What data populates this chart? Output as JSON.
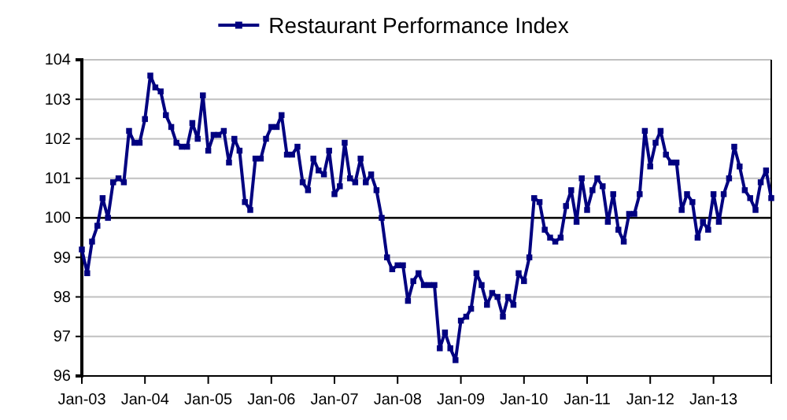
{
  "chart_data": {
    "type": "line",
    "x": [
      "2003-01",
      "2003-02",
      "2003-03",
      "2003-04",
      "2003-05",
      "2003-06",
      "2003-07",
      "2003-08",
      "2003-09",
      "2003-10",
      "2003-11",
      "2003-12",
      "2004-01",
      "2004-02",
      "2004-03",
      "2004-04",
      "2004-05",
      "2004-06",
      "2004-07",
      "2004-08",
      "2004-09",
      "2004-10",
      "2004-11",
      "2004-12",
      "2005-01",
      "2005-02",
      "2005-03",
      "2005-04",
      "2005-05",
      "2005-06",
      "2005-07",
      "2005-08",
      "2005-09",
      "2005-10",
      "2005-11",
      "2005-12",
      "2006-01",
      "2006-02",
      "2006-03",
      "2006-04",
      "2006-05",
      "2006-06",
      "2006-07",
      "2006-08",
      "2006-09",
      "2006-10",
      "2006-11",
      "2006-12",
      "2007-01",
      "2007-02",
      "2007-03",
      "2007-04",
      "2007-05",
      "2007-06",
      "2007-07",
      "2007-08",
      "2007-09",
      "2007-10",
      "2007-11",
      "2007-12",
      "2008-01",
      "2008-02",
      "2008-03",
      "2008-04",
      "2008-05",
      "2008-06",
      "2008-07",
      "2008-08",
      "2008-09",
      "2008-10",
      "2008-11",
      "2008-12",
      "2009-01",
      "2009-02",
      "2009-03",
      "2009-04",
      "2009-05",
      "2009-06",
      "2009-07",
      "2009-08",
      "2009-09",
      "2009-10",
      "2009-11",
      "2009-12",
      "2010-01",
      "2010-02",
      "2010-03",
      "2010-04",
      "2010-05",
      "2010-06",
      "2010-07",
      "2010-08",
      "2010-09",
      "2010-10",
      "2010-11",
      "2010-12",
      "2011-01",
      "2011-02",
      "2011-03",
      "2011-04",
      "2011-05",
      "2011-06",
      "2011-07",
      "2011-08",
      "2011-09",
      "2011-10",
      "2011-11",
      "2011-12",
      "2012-01",
      "2012-02",
      "2012-03",
      "2012-04",
      "2012-05",
      "2012-06",
      "2012-07",
      "2012-08",
      "2012-09",
      "2012-10",
      "2012-11",
      "2012-12",
      "2013-01",
      "2013-02",
      "2013-03",
      "2013-04",
      "2013-05",
      "2013-06",
      "2013-07",
      "2013-08",
      "2013-09",
      "2013-10",
      "2013-11",
      "2013-12"
    ],
    "series": [
      {
        "name": "Restaurant Performance Index",
        "color": "#000080",
        "values": [
          99.2,
          98.6,
          99.4,
          99.8,
          100.5,
          100.0,
          100.9,
          101.0,
          100.9,
          102.2,
          101.9,
          101.9,
          102.5,
          103.6,
          103.3,
          103.2,
          102.6,
          102.3,
          101.9,
          101.8,
          101.8,
          102.4,
          102.0,
          103.1,
          101.7,
          102.1,
          102.1,
          102.2,
          101.4,
          102.0,
          101.7,
          100.4,
          100.2,
          101.5,
          101.5,
          102.0,
          102.3,
          102.3,
          102.6,
          101.6,
          101.6,
          101.8,
          100.9,
          100.7,
          101.5,
          101.2,
          101.1,
          101.7,
          100.6,
          100.8,
          101.9,
          101.0,
          100.9,
          101.5,
          100.9,
          101.1,
          100.7,
          100.0,
          99.0,
          98.7,
          98.8,
          98.8,
          97.9,
          98.4,
          98.6,
          98.3,
          98.3,
          98.3,
          96.7,
          97.1,
          96.7,
          96.4,
          97.4,
          97.5,
          97.7,
          98.6,
          98.3,
          97.8,
          98.1,
          98.0,
          97.5,
          98.0,
          97.8,
          98.6,
          98.4,
          99.0,
          100.5,
          100.4,
          99.7,
          99.5,
          99.4,
          99.5,
          100.3,
          100.7,
          99.9,
          101.0,
          100.2,
          100.7,
          101.0,
          100.8,
          99.9,
          100.6,
          99.7,
          99.4,
          100.1,
          100.1,
          100.6,
          102.2,
          101.3,
          101.9,
          102.2,
          101.6,
          101.4,
          101.4,
          100.2,
          100.6,
          100.4,
          99.5,
          99.9,
          99.7,
          100.6,
          99.9,
          100.6,
          101.0,
          101.8,
          101.3,
          100.7,
          100.5,
          100.2,
          100.9,
          101.2,
          100.5
        ]
      }
    ],
    "xlim": [
      "2003-01",
      "2013-12"
    ],
    "xticks": [
      {
        "value": "2003-01",
        "label": "Jan-03"
      },
      {
        "value": "2004-01",
        "label": "Jan-04"
      },
      {
        "value": "2005-01",
        "label": "Jan-05"
      },
      {
        "value": "2006-01",
        "label": "Jan-06"
      },
      {
        "value": "2007-01",
        "label": "Jan-07"
      },
      {
        "value": "2008-01",
        "label": "Jan-08"
      },
      {
        "value": "2009-01",
        "label": "Jan-09"
      },
      {
        "value": "2010-01",
        "label": "Jan-10"
      },
      {
        "value": "2011-01",
        "label": "Jan-11"
      },
      {
        "value": "2012-01",
        "label": "Jan-12"
      },
      {
        "value": "2013-01",
        "label": "Jan-13"
      }
    ],
    "ylim": [
      96,
      104
    ],
    "yticks": [
      96,
      97,
      98,
      99,
      100,
      101,
      102,
      103,
      104
    ],
    "ref_lines": [
      {
        "axis": "y",
        "value": 100,
        "color": "#000000"
      }
    ],
    "grid": "y",
    "legend": "top",
    "marker": "square",
    "line_style": "solid"
  }
}
